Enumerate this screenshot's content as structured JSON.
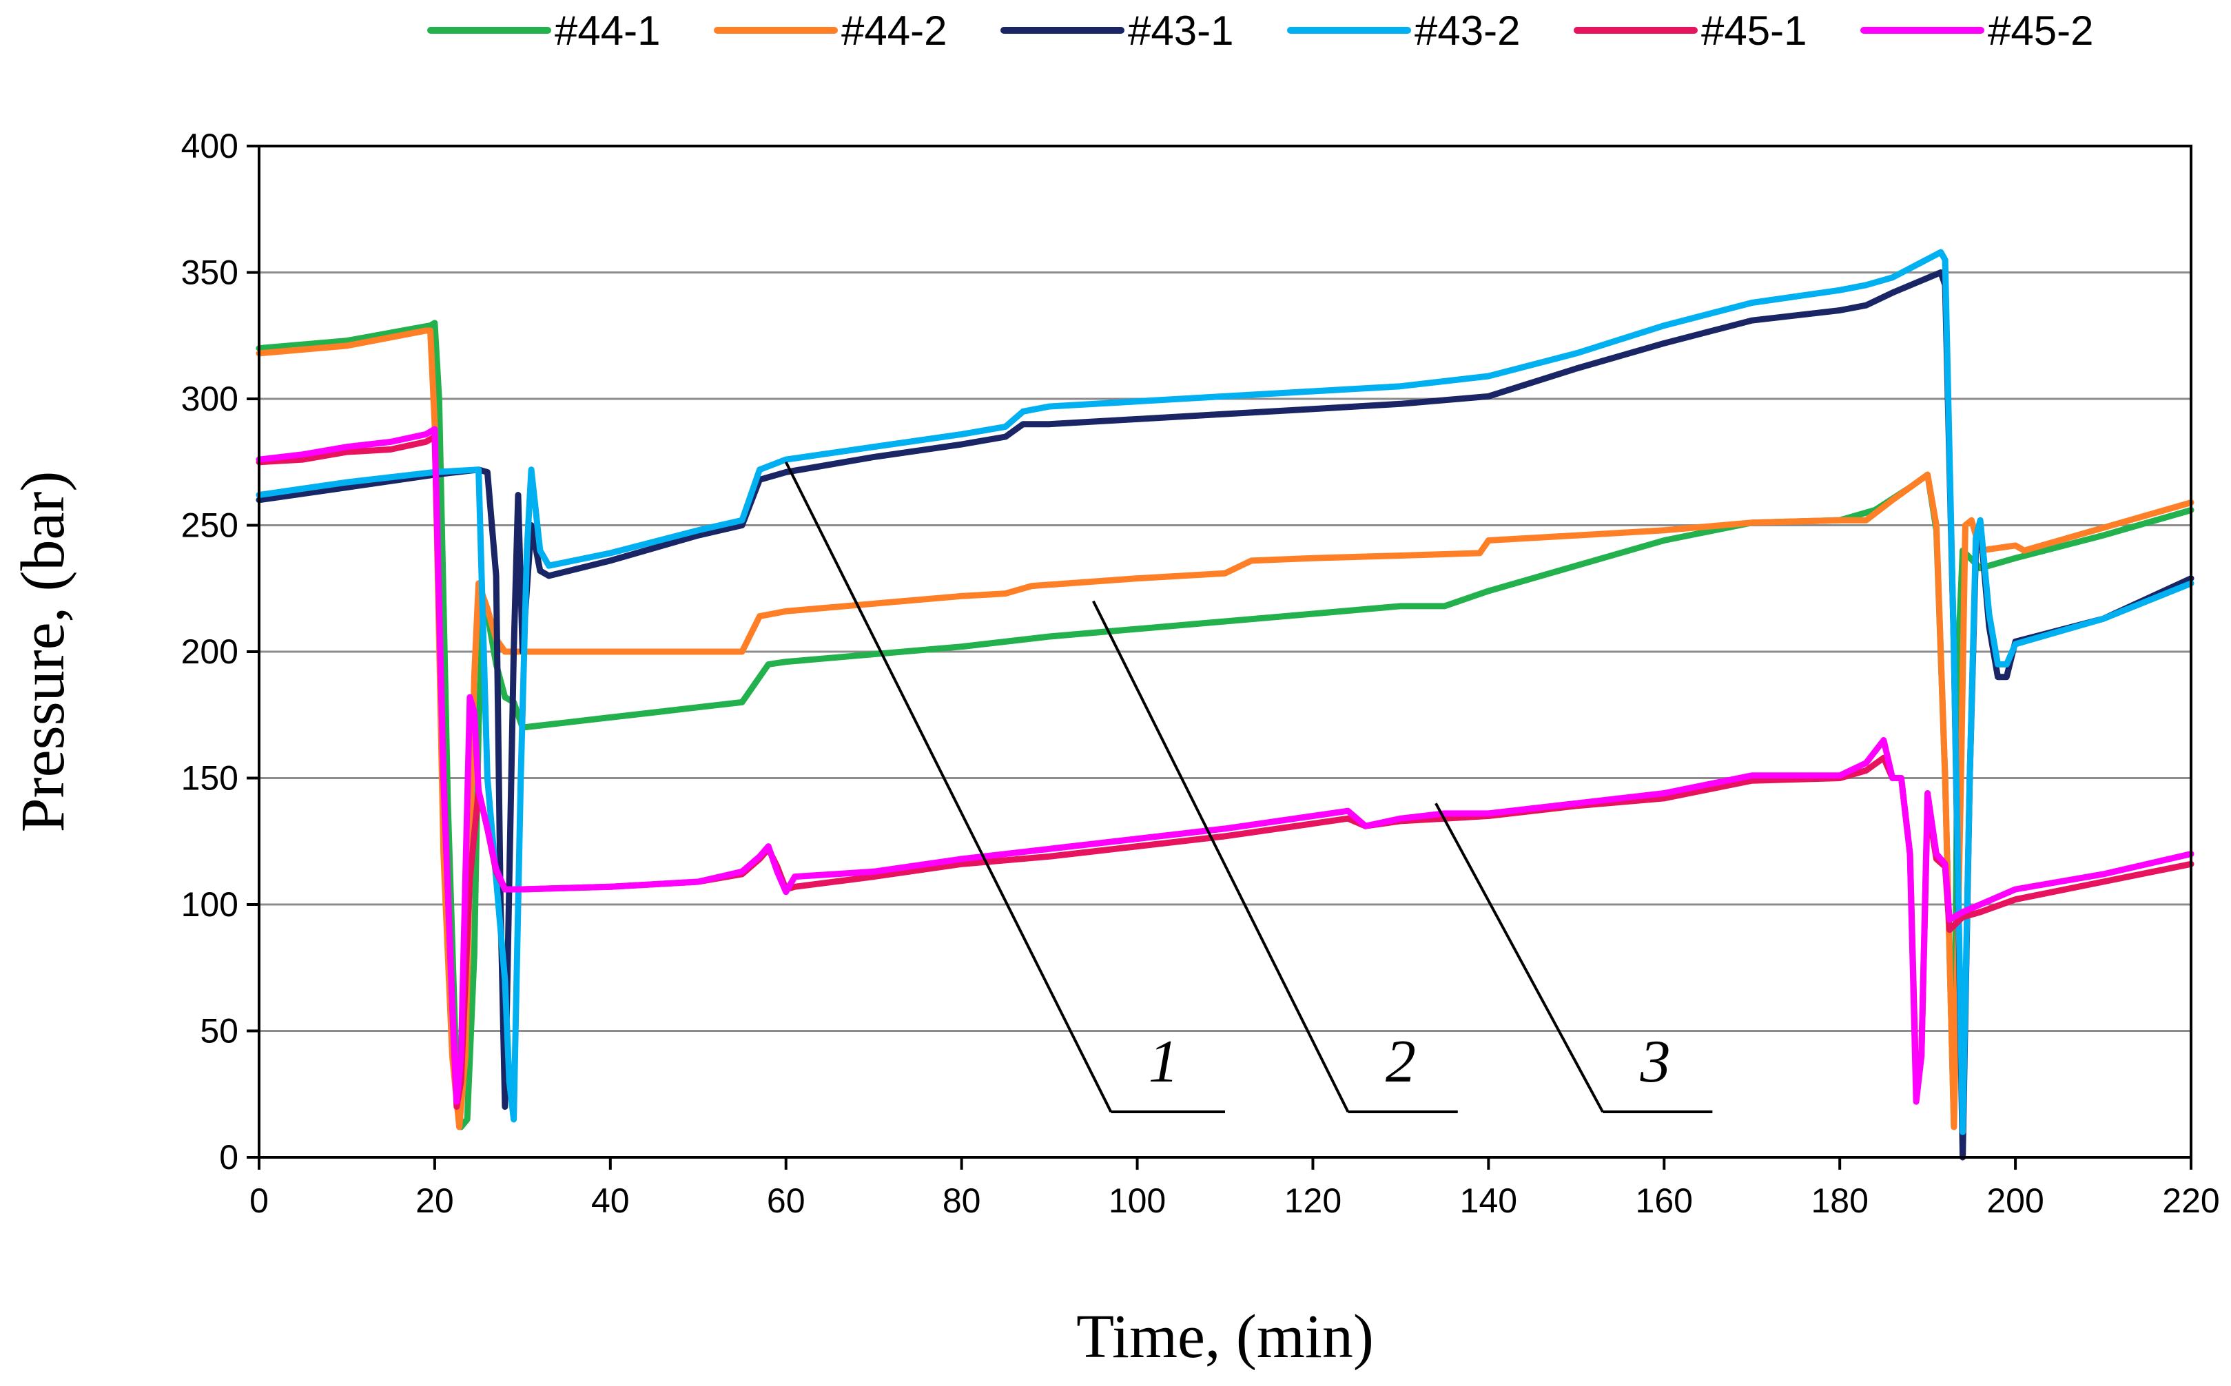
{
  "chart_data": {
    "type": "line",
    "title": "",
    "xlabel": "Time, (min)",
    "ylabel": "Pressure, (bar)",
    "xlim": [
      0,
      220
    ],
    "ylim": [
      0,
      400
    ],
    "xticks": [
      0,
      20,
      40,
      60,
      80,
      100,
      120,
      140,
      160,
      180,
      200,
      220
    ],
    "yticks": [
      0,
      50,
      100,
      150,
      200,
      250,
      300,
      350,
      400
    ],
    "xtick_labels": [
      "0",
      "20",
      "40",
      "60",
      "80",
      "100",
      "120",
      "140",
      "160",
      "180",
      "200",
      "220"
    ],
    "ytick_labels": [
      "0",
      "50",
      "100",
      "150",
      "200",
      "250",
      "300",
      "350",
      "400"
    ],
    "grid": "horizontal",
    "legend_position": "top",
    "series": [
      {
        "name": "#44-1",
        "color": "#22b14c",
        "points": [
          [
            0,
            320
          ],
          [
            10,
            323
          ],
          [
            19.5,
            329
          ],
          [
            20,
            330
          ],
          [
            20.5,
            300
          ],
          [
            21.5,
            140
          ],
          [
            22.5,
            30
          ],
          [
            23,
            12
          ],
          [
            23.7,
            15
          ],
          [
            24.5,
            80
          ],
          [
            25,
            170
          ],
          [
            25.5,
            215
          ],
          [
            26,
            215
          ],
          [
            27,
            195
          ],
          [
            28,
            182
          ],
          [
            29,
            180
          ],
          [
            30,
            170
          ],
          [
            35,
            172
          ],
          [
            40,
            174
          ],
          [
            45,
            176
          ],
          [
            50,
            178
          ],
          [
            55,
            180
          ],
          [
            57,
            190
          ],
          [
            58,
            195
          ],
          [
            60,
            196
          ],
          [
            70,
            199
          ],
          [
            80,
            202
          ],
          [
            90,
            206
          ],
          [
            100,
            209
          ],
          [
            110,
            212
          ],
          [
            120,
            215
          ],
          [
            130,
            218
          ],
          [
            135,
            218
          ],
          [
            140,
            224
          ],
          [
            150,
            234
          ],
          [
            160,
            244
          ],
          [
            170,
            251
          ],
          [
            180,
            252
          ],
          [
            184,
            256
          ],
          [
            188,
            265
          ],
          [
            190,
            270
          ],
          [
            191,
            248
          ],
          [
            192,
            150
          ],
          [
            193,
            12
          ],
          [
            193.5,
            200
          ],
          [
            194,
            240
          ],
          [
            196,
            233
          ],
          [
            200,
            237
          ],
          [
            210,
            246
          ],
          [
            220,
            256
          ]
        ]
      },
      {
        "name": "#44-2",
        "color": "#ff7f27",
        "points": [
          [
            0,
            318
          ],
          [
            10,
            321
          ],
          [
            19,
            327
          ],
          [
            19.5,
            327
          ],
          [
            20,
            290
          ],
          [
            21,
            120
          ],
          [
            22,
            40
          ],
          [
            22.8,
            12
          ],
          [
            23.5,
            40
          ],
          [
            24.5,
            190
          ],
          [
            25,
            227
          ],
          [
            26,
            217
          ],
          [
            27,
            205
          ],
          [
            28,
            200
          ],
          [
            35,
            200
          ],
          [
            40,
            200
          ],
          [
            50,
            200
          ],
          [
            55,
            200
          ],
          [
            57,
            214
          ],
          [
            60,
            216
          ],
          [
            70,
            219
          ],
          [
            80,
            222
          ],
          [
            85,
            223
          ],
          [
            88,
            226
          ],
          [
            100,
            229
          ],
          [
            110,
            231
          ],
          [
            113,
            236
          ],
          [
            120,
            237
          ],
          [
            130,
            238
          ],
          [
            139,
            239
          ],
          [
            140,
            244
          ],
          [
            150,
            246
          ],
          [
            160,
            248
          ],
          [
            170,
            251
          ],
          [
            180,
            252
          ],
          [
            183,
            252
          ],
          [
            186,
            260
          ],
          [
            190,
            270
          ],
          [
            191,
            250
          ],
          [
            192,
            150
          ],
          [
            193,
            12
          ],
          [
            193.8,
            150
          ],
          [
            194.3,
            250
          ],
          [
            195,
            252
          ],
          [
            196,
            240
          ],
          [
            200,
            242
          ],
          [
            201,
            240
          ],
          [
            210,
            249
          ],
          [
            220,
            259
          ]
        ]
      },
      {
        "name": "#43-1",
        "color": "#1a2566",
        "points": [
          [
            0,
            260
          ],
          [
            10,
            265
          ],
          [
            20,
            270
          ],
          [
            25,
            272
          ],
          [
            26,
            271
          ],
          [
            27,
            230
          ],
          [
            27.5,
            100
          ],
          [
            28,
            20
          ],
          [
            28.5,
            110
          ],
          [
            29,
            200
          ],
          [
            29.5,
            262
          ],
          [
            30,
            200
          ],
          [
            31,
            250
          ],
          [
            32,
            232
          ],
          [
            33,
            230
          ],
          [
            40,
            236
          ],
          [
            50,
            246
          ],
          [
            55,
            250
          ],
          [
            57,
            268
          ],
          [
            60,
            271
          ],
          [
            70,
            277
          ],
          [
            80,
            282
          ],
          [
            85,
            285
          ],
          [
            87,
            290
          ],
          [
            90,
            290
          ],
          [
            100,
            292
          ],
          [
            110,
            294
          ],
          [
            120,
            296
          ],
          [
            130,
            298
          ],
          [
            140,
            301
          ],
          [
            150,
            312
          ],
          [
            160,
            322
          ],
          [
            170,
            331
          ],
          [
            180,
            335
          ],
          [
            183,
            337
          ],
          [
            186,
            342
          ],
          [
            191.5,
            350
          ],
          [
            192,
            345
          ],
          [
            193,
            200
          ],
          [
            194,
            0
          ],
          [
            194.8,
            150
          ],
          [
            195.5,
            240
          ],
          [
            196,
            250
          ],
          [
            197,
            210
          ],
          [
            198,
            190
          ],
          [
            199,
            190
          ],
          [
            200,
            204
          ],
          [
            210,
            213
          ],
          [
            220,
            229
          ]
        ]
      },
      {
        "name": "#43-2",
        "color": "#00b0f0",
        "points": [
          [
            0,
            262
          ],
          [
            10,
            267
          ],
          [
            20,
            271
          ],
          [
            25,
            272
          ],
          [
            26,
            150
          ],
          [
            28,
            70
          ],
          [
            28.5,
            30
          ],
          [
            29,
            15
          ],
          [
            29.8,
            150
          ],
          [
            30.5,
            240
          ],
          [
            31,
            272
          ],
          [
            32,
            240
          ],
          [
            33,
            234
          ],
          [
            40,
            239
          ],
          [
            50,
            248
          ],
          [
            55,
            252
          ],
          [
            57,
            272
          ],
          [
            60,
            276
          ],
          [
            70,
            281
          ],
          [
            80,
            286
          ],
          [
            85,
            289
          ],
          [
            87,
            295
          ],
          [
            90,
            297
          ],
          [
            100,
            299
          ],
          [
            110,
            301
          ],
          [
            120,
            303
          ],
          [
            130,
            305
          ],
          [
            140,
            309
          ],
          [
            150,
            318
          ],
          [
            160,
            329
          ],
          [
            170,
            338
          ],
          [
            180,
            343
          ],
          [
            183,
            345
          ],
          [
            186,
            348
          ],
          [
            191.5,
            358
          ],
          [
            192,
            355
          ],
          [
            193,
            200
          ],
          [
            194,
            10
          ],
          [
            194.8,
            150
          ],
          [
            195.5,
            245
          ],
          [
            196,
            252
          ],
          [
            197,
            215
          ],
          [
            198,
            195
          ],
          [
            199,
            195
          ],
          [
            200,
            203
          ],
          [
            210,
            213
          ],
          [
            220,
            227
          ]
        ]
      },
      {
        "name": "#45-1",
        "color": "#e8135e",
        "points": [
          [
            0,
            275
          ],
          [
            5,
            276
          ],
          [
            10,
            279
          ],
          [
            15,
            280
          ],
          [
            19,
            283
          ],
          [
            20,
            285
          ],
          [
            21,
            150
          ],
          [
            22,
            60
          ],
          [
            22.5,
            20
          ],
          [
            23,
            30
          ],
          [
            24,
            110
          ],
          [
            25,
            145
          ],
          [
            26,
            130
          ],
          [
            27,
            113
          ],
          [
            28,
            106
          ],
          [
            30,
            106
          ],
          [
            40,
            107
          ],
          [
            50,
            109
          ],
          [
            55,
            112
          ],
          [
            57,
            118
          ],
          [
            58,
            122
          ],
          [
            59,
            115
          ],
          [
            60,
            106
          ],
          [
            61,
            107
          ],
          [
            70,
            111
          ],
          [
            80,
            116
          ],
          [
            90,
            119
          ],
          [
            100,
            123
          ],
          [
            110,
            127
          ],
          [
            120,
            132
          ],
          [
            124,
            134
          ],
          [
            126,
            131
          ],
          [
            130,
            133
          ],
          [
            135,
            134
          ],
          [
            140,
            135
          ],
          [
            150,
            139
          ],
          [
            160,
            142
          ],
          [
            170,
            149
          ],
          [
            180,
            150
          ],
          [
            183,
            153
          ],
          [
            185,
            158
          ],
          [
            186,
            150
          ],
          [
            187,
            150
          ],
          [
            188,
            120
          ],
          [
            188.7,
            28
          ],
          [
            189.3,
            40
          ],
          [
            190,
            140
          ],
          [
            191,
            118
          ],
          [
            192,
            115
          ],
          [
            192.5,
            90
          ],
          [
            194,
            95
          ],
          [
            196,
            97
          ],
          [
            200,
            102
          ],
          [
            210,
            109
          ],
          [
            220,
            116
          ]
        ]
      },
      {
        "name": "#45-2",
        "color": "#ff00ff",
        "points": [
          [
            0,
            276
          ],
          [
            5,
            278
          ],
          [
            10,
            281
          ],
          [
            15,
            283
          ],
          [
            19,
            286
          ],
          [
            20,
            288
          ],
          [
            21,
            150
          ],
          [
            22,
            60
          ],
          [
            22.5,
            22
          ],
          [
            23,
            40
          ],
          [
            24,
            182
          ],
          [
            24.5,
            176
          ],
          [
            25,
            145
          ],
          [
            26,
            130
          ],
          [
            27,
            114
          ],
          [
            28,
            106
          ],
          [
            30,
            106
          ],
          [
            40,
            107
          ],
          [
            50,
            109
          ],
          [
            55,
            113
          ],
          [
            57,
            119
          ],
          [
            58,
            123
          ],
          [
            59,
            113
          ],
          [
            60,
            105
          ],
          [
            61,
            111
          ],
          [
            70,
            113
          ],
          [
            80,
            118
          ],
          [
            90,
            122
          ],
          [
            100,
            126
          ],
          [
            110,
            130
          ],
          [
            120,
            135
          ],
          [
            124,
            137
          ],
          [
            126,
            131
          ],
          [
            130,
            134
          ],
          [
            135,
            136
          ],
          [
            140,
            136
          ],
          [
            150,
            140
          ],
          [
            160,
            144
          ],
          [
            170,
            151
          ],
          [
            180,
            151
          ],
          [
            183,
            156
          ],
          [
            185,
            165
          ],
          [
            186,
            150
          ],
          [
            187,
            150
          ],
          [
            188,
            120
          ],
          [
            188.7,
            22
          ],
          [
            189.3,
            40
          ],
          [
            190,
            144
          ],
          [
            191,
            120
          ],
          [
            192,
            116
          ],
          [
            192.5,
            94
          ],
          [
            194,
            97
          ],
          [
            196,
            100
          ],
          [
            200,
            106
          ],
          [
            210,
            112
          ],
          [
            220,
            120
          ]
        ]
      }
    ],
    "annotations": [
      {
        "label": "1",
        "from": [
          60,
          275
        ],
        "to": [
          97,
          18
        ],
        "underline_end": [
          110,
          18
        ],
        "label_at": [
          103,
          30
        ]
      },
      {
        "label": "2",
        "from": [
          95,
          220
        ],
        "to": [
          124,
          18
        ],
        "underline_end": [
          136.5,
          18
        ],
        "label_at": [
          130,
          30
        ]
      },
      {
        "label": "3",
        "from": [
          134,
          140
        ],
        "to": [
          153,
          18
        ],
        "underline_end": [
          165.5,
          18
        ],
        "label_at": [
          159,
          30
        ]
      }
    ]
  }
}
